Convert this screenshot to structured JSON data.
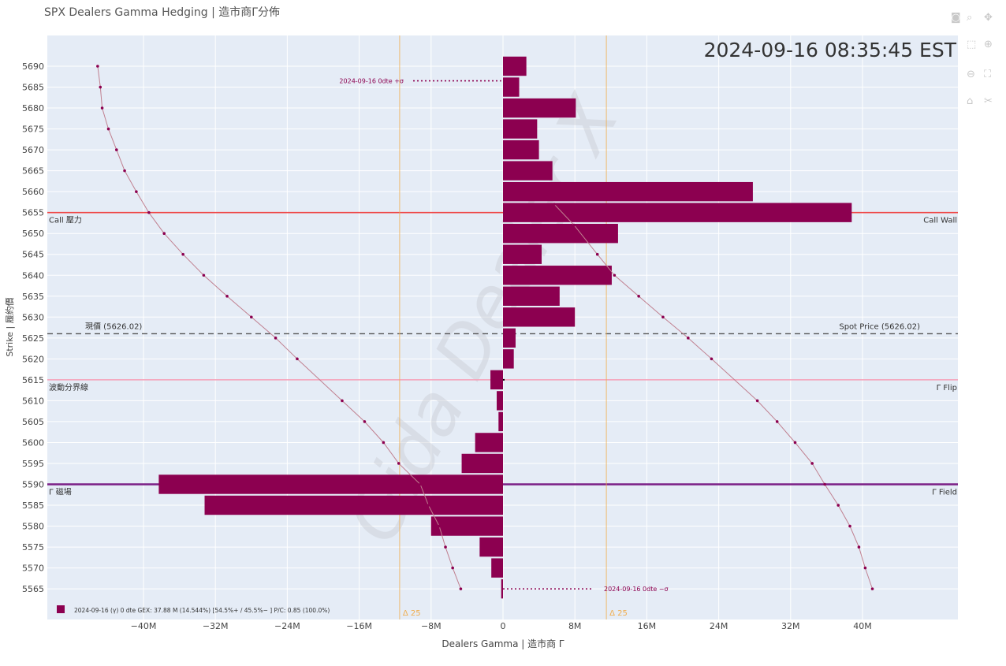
{
  "page_title": "SPX Dealers Gamma Hedging | 造市商Γ分佈",
  "timestamp": "2024-09-16 08:35:45 EST",
  "watermark": "Gida Dealer X",
  "modebar_icons": [
    "camera-icon",
    "zoom-icon",
    "pan-icon",
    "box-select-icon",
    "zoom-in-icon",
    "zoom-out-icon",
    "autoscale-icon",
    "reset-axes-icon",
    "spike-lines-icon"
  ],
  "colors": {
    "plot_bg": "#e5ecf6",
    "grid": "#ffffff",
    "bar": "#8c0050",
    "call_wall": "#ef4444",
    "flip": "#f5a0b8",
    "field": "#7b1f86",
    "spot": "#555555",
    "delta": "#f0ad4e",
    "curve": "#c08090",
    "curve_point": "#8c0050"
  },
  "chart_data": {
    "type": "bar",
    "orientation": "horizontal",
    "xlabel": "Dealers Gamma | 造市商 Γ",
    "ylabel": "Strike | 履約價",
    "xlim": [
      -50,
      63
    ],
    "ylim": [
      5562,
      5692
    ],
    "x_ticks": [
      {
        "v": -40,
        "label": "−40M"
      },
      {
        "v": -32,
        "label": "−32M"
      },
      {
        "v": -24,
        "label": "−24M"
      },
      {
        "v": -16,
        "label": "−16M"
      },
      {
        "v": -8,
        "label": "−8M"
      },
      {
        "v": 0,
        "label": "0"
      },
      {
        "v": 8,
        "label": "8M"
      },
      {
        "v": 16,
        "label": "16M"
      },
      {
        "v": 24,
        "label": "24M"
      },
      {
        "v": 32,
        "label": "32M"
      },
      {
        "v": 40,
        "label": "40M"
      }
    ],
    "y_ticks": [
      5565,
      5570,
      5575,
      5580,
      5585,
      5590,
      5595,
      5600,
      5605,
      5610,
      5615,
      5620,
      5625,
      5630,
      5635,
      5640,
      5645,
      5650,
      5655,
      5660,
      5665,
      5670,
      5675,
      5680,
      5685,
      5690
    ],
    "bars": [
      {
        "strike": 5690,
        "value": 2.6
      },
      {
        "strike": 5685,
        "value": 1.8
      },
      {
        "strike": 5680,
        "value": 8.1
      },
      {
        "strike": 5675,
        "value": 3.8
      },
      {
        "strike": 5670,
        "value": 4.0
      },
      {
        "strike": 5665,
        "value": 5.5
      },
      {
        "strike": 5660,
        "value": 27.8
      },
      {
        "strike": 5655,
        "value": 38.8
      },
      {
        "strike": 5650,
        "value": 12.8
      },
      {
        "strike": 5645,
        "value": 4.3
      },
      {
        "strike": 5640,
        "value": 12.1
      },
      {
        "strike": 5635,
        "value": 6.3
      },
      {
        "strike": 5630,
        "value": 8.0
      },
      {
        "strike": 5625,
        "value": 1.4
      },
      {
        "strike": 5620,
        "value": 1.2
      },
      {
        "strike": 5615,
        "value": -1.4
      },
      {
        "strike": 5610,
        "value": -0.7
      },
      {
        "strike": 5605,
        "value": -0.5
      },
      {
        "strike": 5600,
        "value": -3.1
      },
      {
        "strike": 5595,
        "value": -4.6
      },
      {
        "strike": 5590,
        "value": -38.3
      },
      {
        "strike": 5585,
        "value": -33.2
      },
      {
        "strike": 5580,
        "value": -8.0
      },
      {
        "strike": 5575,
        "value": -2.6
      },
      {
        "strike": 5570,
        "value": -1.3
      },
      {
        "strike": 5565,
        "value": -0.2
      }
    ],
    "levels": [
      {
        "strike": 5655,
        "left_label": "Call 壓力",
        "right_label": "Call Wall",
        "style": "call_wall"
      },
      {
        "strike": 5626.02,
        "left_label": "現價 (5626.02)",
        "right_label": "Spot Price (5626.02)",
        "style": "spot"
      },
      {
        "strike": 5615,
        "left_label": "波動分界線",
        "right_label": "Γ Flip",
        "style": "flip"
      },
      {
        "strike": 5590,
        "left_label": "Γ 磁場",
        "right_label": "Γ Field",
        "style": "field"
      }
    ],
    "delta_lines": [
      {
        "x": -11.5,
        "label": "Δ 25"
      },
      {
        "x": 11.5,
        "label": "Δ 25"
      }
    ],
    "annotations": [
      {
        "text": "2024-09-16 0dte +σ",
        "strike": 5686.5,
        "line_from": -10,
        "line_to": -0.2
      },
      {
        "text": "2024-09-16 0dte −σ",
        "strike": 5565,
        "line_from": 0,
        "line_to": 10
      }
    ],
    "left_curve": [
      [
        -45.1,
        5690
      ],
      [
        -44.8,
        5685
      ],
      [
        -44.6,
        5680
      ],
      [
        -43.9,
        5675
      ],
      [
        -43.0,
        5670
      ],
      [
        -42.1,
        5665
      ],
      [
        -40.8,
        5660
      ],
      [
        -39.4,
        5655
      ],
      [
        -37.7,
        5650
      ],
      [
        -35.6,
        5645
      ],
      [
        -33.3,
        5640
      ],
      [
        -30.7,
        5635
      ],
      [
        -28.0,
        5630
      ],
      [
        -25.3,
        5625
      ],
      [
        -22.9,
        5620
      ],
      [
        -17.9,
        5610
      ],
      [
        -15.4,
        5605
      ],
      [
        -13.3,
        5600
      ],
      [
        -11.6,
        5595
      ],
      [
        -9.2,
        5590
      ],
      [
        -8.3,
        5585
      ],
      [
        -7.1,
        5580
      ],
      [
        -6.4,
        5575
      ],
      [
        -5.6,
        5570
      ],
      [
        -4.7,
        5565
      ]
    ],
    "right_curve": [
      [
        5.7,
        5657
      ],
      [
        7.9,
        5652
      ],
      [
        10.5,
        5645
      ],
      [
        12.4,
        5640
      ],
      [
        15.1,
        5635
      ],
      [
        17.8,
        5630
      ],
      [
        20.6,
        5625
      ],
      [
        23.2,
        5620
      ],
      [
        28.3,
        5610
      ],
      [
        30.5,
        5605
      ],
      [
        32.5,
        5600
      ],
      [
        34.4,
        5595
      ],
      [
        35.8,
        5590
      ],
      [
        37.3,
        5585
      ],
      [
        38.6,
        5580
      ],
      [
        39.6,
        5575
      ],
      [
        40.3,
        5570
      ],
      [
        41.1,
        5565
      ]
    ],
    "legend": {
      "text": "2024-09-16 (γ)   0 dte   GEX: 37.88 M (14.544%)    [54.5%+ / 45.5%− ]    P/C: 0.85   (100.0%)"
    }
  }
}
